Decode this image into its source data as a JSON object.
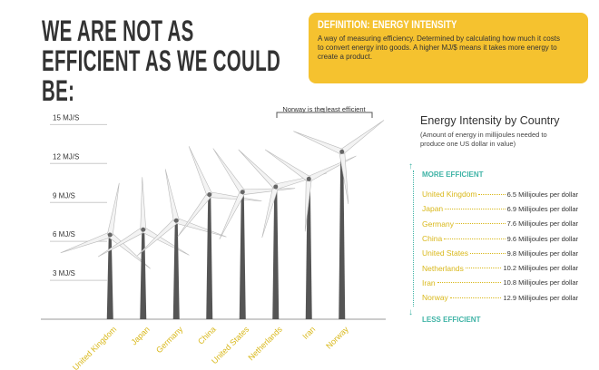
{
  "header": {
    "title": "WE ARE NOT AS EFFICIENT AS WE COULD BE:"
  },
  "definition": {
    "heading": "DEFINITION: ENERGY INTENSITY",
    "text": "A way of measuring efficiency. Determined by calculating how much it costs to convert energy into goods. A higher MJ/$ means it takes more energy to create a product."
  },
  "chart_data": {
    "type": "bar",
    "annotation": "Norway is the least efficient",
    "categories": [
      "United Kingdom",
      "Japan",
      "Germany",
      "China",
      "United States",
      "Netherlands",
      "Iran",
      "Norway"
    ],
    "values": [
      6.5,
      6.9,
      7.6,
      9.6,
      9.8,
      10.2,
      10.8,
      12.9
    ],
    "value_labels": [
      "6.5 Millijoules per dollar",
      "6.9 Millijoules per dollar",
      "7.6 Millijoules per dollar",
      "9.6 Millijoules per dollar",
      "9.8 Millijoules per dollar",
      "10.2 Millijoules per dollar",
      "10.8 Millijoules per dollar",
      "12.9 Millijoules per dollar"
    ],
    "color": "#555555",
    "ylim": [
      0,
      16
    ],
    "yticks": [
      {
        "value": 3,
        "label": "3 MJ/S"
      },
      {
        "value": 6,
        "label": "6 MJ/S"
      },
      {
        "value": 9,
        "label": "9 MJ/S"
      },
      {
        "value": 12,
        "label": "12 MJ/S"
      },
      {
        "value": 15,
        "label": "15 MJ/S"
      }
    ],
    "grid": true,
    "legend": {
      "title": "Energy Intensity by Country",
      "subtitle": "(Amount of energy in millijoules needed to produce one US dollar in value)",
      "top_label": "MORE EFFICIENT",
      "bottom_label": "LESS EFFICIENT"
    }
  }
}
